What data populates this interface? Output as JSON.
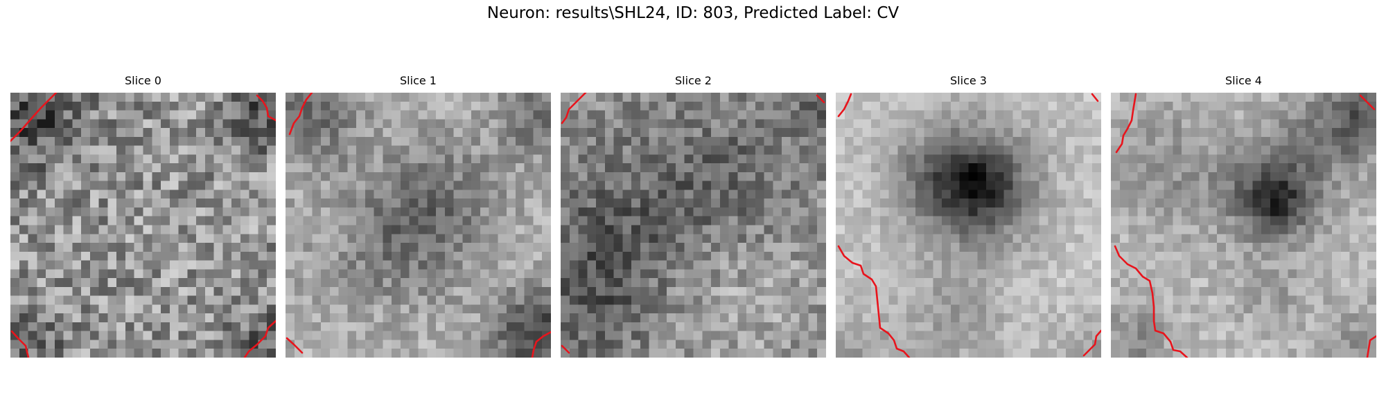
{
  "figure": {
    "title": "Neuron: results\\SHL24, ID: 803, Predicted Label: CV"
  },
  "panels": [
    {
      "title": "Slice 0"
    },
    {
      "title": "Slice 1"
    },
    {
      "title": "Slice 2"
    },
    {
      "title": "Slice 3"
    },
    {
      "title": "Slice 4"
    }
  ],
  "colors": {
    "contour": "#e8141c",
    "colormap": "gray"
  }
}
